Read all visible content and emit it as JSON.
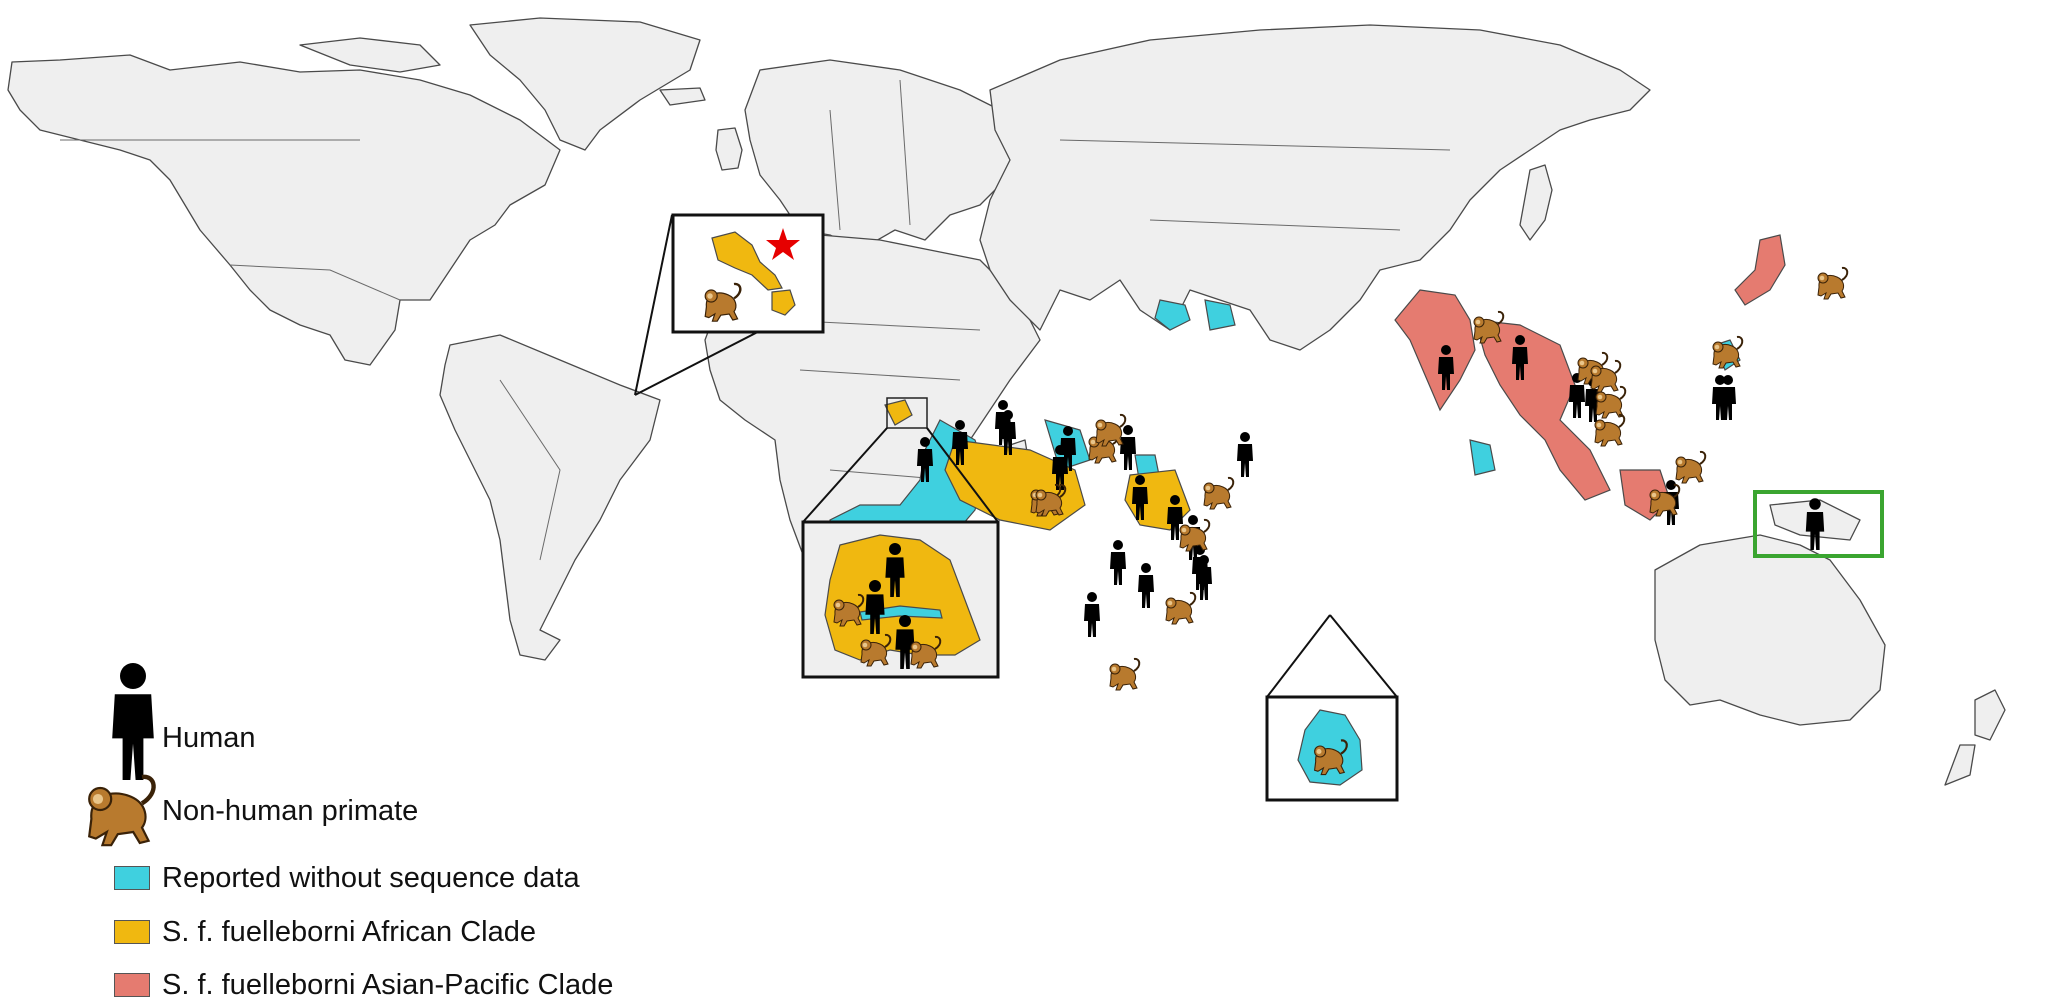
{
  "legend": {
    "human_label": "Human",
    "primate_label": "Non-human primate",
    "items": [
      {
        "label": "Reported without sequence data",
        "color": "#3fd0df"
      },
      {
        "label": "S. f. fuelleborni African Clade",
        "color": "#f0b810"
      },
      {
        "label": "S. f. fuelleborni Asian-Pacific Clade",
        "color": "#e57b70"
      }
    ]
  },
  "markers": {
    "human_icon": "person-icon",
    "primate_icon": "monkey-icon",
    "star_icon": "star-icon",
    "star_color": "#e60000",
    "highlight_color": "#3aa530"
  }
}
